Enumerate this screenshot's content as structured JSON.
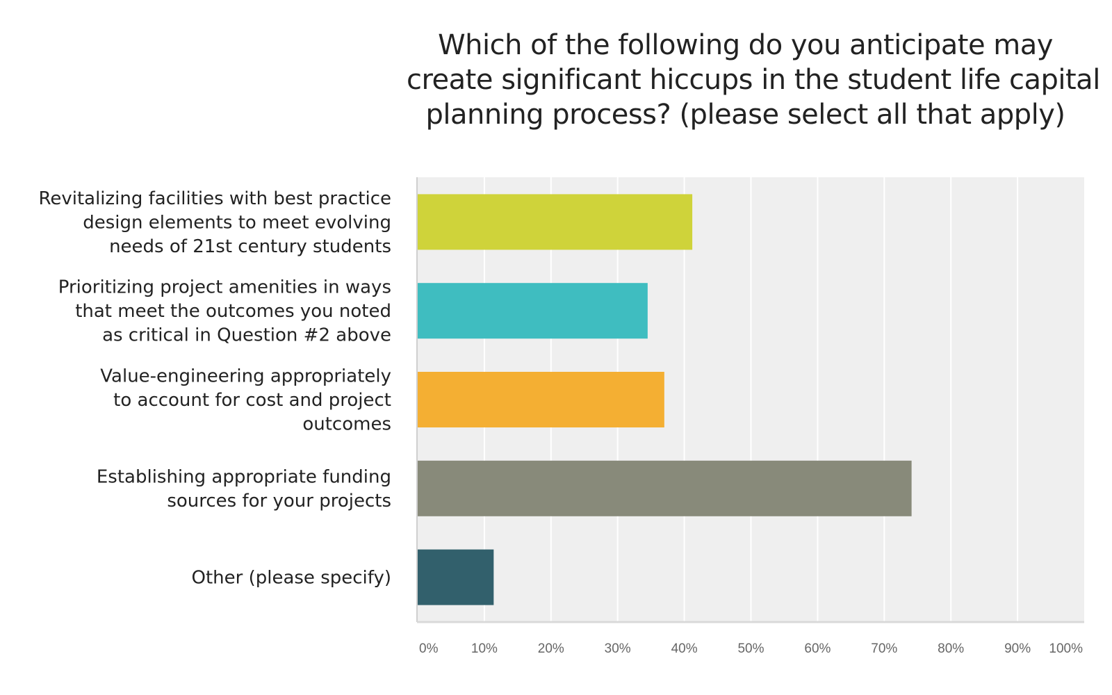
{
  "chart_data": {
    "type": "bar",
    "orientation": "horizontal",
    "title": "Which of the following do you anticipate may create significant hiccups in the student life capital planning process? (please select all that apply)",
    "title_lines": [
      "Which of the following do you anticipate may",
      "create significant hiccups in the student life capital",
      "planning process? (please select all that apply)"
    ],
    "categories": [
      "Revitalizing facilities with best practice design elements to meet evolving needs of 21st century students",
      "Prioritizing project amenities in ways that meet the outcomes you noted as critical in Question #2 above",
      "Value-engineering appropriately to account for cost and project outcomes",
      "Establishing appropriate funding sources for your projects",
      "Other (please specify)"
    ],
    "category_lines": [
      [
        "Revitalizing facilities with best practice",
        "design elements to meet evolving",
        "needs of 21st century students"
      ],
      [
        "Prioritizing project amenities in ways",
        "that meet the outcomes you noted",
        "as critical in Question #2 above"
      ],
      [
        "Value-engineering appropriately",
        "to account for cost and project",
        "outcomes"
      ],
      [
        "Establishing appropriate funding",
        "sources for your projects"
      ],
      [
        "Other (please specify)"
      ]
    ],
    "values": [
      41.2,
      34.5,
      37.0,
      74.1,
      11.4
    ],
    "colors": [
      "#CFD33A",
      "#3FBDC0",
      "#F4AF33",
      "#888A7A",
      "#32606C"
    ],
    "xlabel": "",
    "ylabel": "",
    "xlim": [
      0,
      100
    ],
    "xticks": [
      0,
      10,
      20,
      30,
      40,
      50,
      60,
      70,
      80,
      90,
      100
    ],
    "xtick_labels": [
      "0%",
      "10%",
      "20%",
      "30%",
      "40%",
      "50%",
      "60%",
      "70%",
      "80%",
      "90%",
      "100%"
    ],
    "grid": true,
    "plot_background": "#EFEFEF",
    "legend": "none"
  }
}
